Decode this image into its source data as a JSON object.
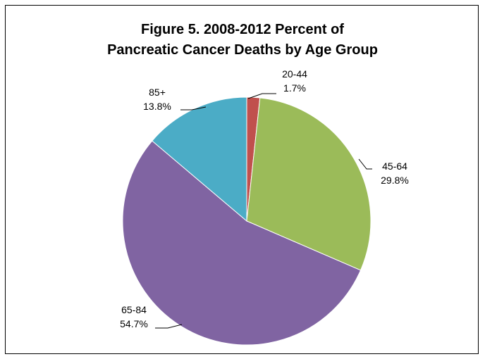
{
  "chart_data": {
    "type": "pie",
    "title_lines": [
      "Figure 5.  2008-2012 Percent of",
      "Pancreatic Cancer Deaths by Age Group"
    ],
    "slices": [
      {
        "category": "20-44",
        "value": 1.7,
        "value_label": "1.7%",
        "color": "#C0504D"
      },
      {
        "category": "45-64",
        "value": 29.8,
        "value_label": "29.8%",
        "color": "#9BBB59"
      },
      {
        "category": "65-84",
        "value": 54.7,
        "value_label": "54.7%",
        "color": "#8064A2"
      },
      {
        "category": "85+",
        "value": 13.8,
        "value_label": "13.8%",
        "color": "#4BACC6"
      }
    ],
    "start_angle": "12 o'clock, clockwise",
    "legend": "none",
    "leader_lines": true
  }
}
